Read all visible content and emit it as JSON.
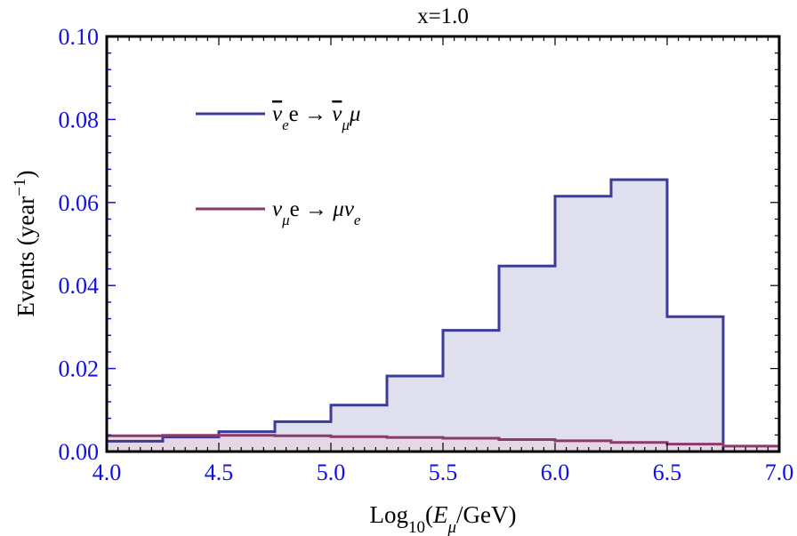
{
  "chart_data": {
    "type": "histogram",
    "title": "x=1.0",
    "xlabel": {
      "base": "Log",
      "sub": "10",
      "open": "(",
      "var": "E",
      "var_sub": "μ",
      "close": "/GeV)"
    },
    "ylabel": {
      "base": "Events (year",
      "sup": "−1",
      "close": ")"
    },
    "xlim": [
      4.0,
      7.0
    ],
    "ylim": [
      0.0,
      0.1
    ],
    "x_ticks": [
      "4.0",
      "4.5",
      "5.0",
      "5.5",
      "6.0",
      "6.5",
      "7.0"
    ],
    "y_ticks": [
      "0.00",
      "0.02",
      "0.04",
      "0.06",
      "0.08",
      "0.10"
    ],
    "bin_edges": [
      4.0,
      4.25,
      4.5,
      4.75,
      5.0,
      5.25,
      5.5,
      5.75,
      6.0,
      6.25,
      6.5,
      6.75,
      7.0
    ],
    "series": [
      {
        "legend": {
          "parts": [
            {
              "t": "ν",
              "italic": true,
              "bar": true
            },
            {
              "t": "e",
              "italic": true,
              "sub": true
            },
            {
              "t": "e → "
            },
            {
              "t": "ν",
              "italic": true,
              "bar": true
            },
            {
              "t": "μ",
              "italic": true,
              "sub": true
            },
            {
              "t": "μ",
              "italic": true
            }
          ]
        },
        "values": [
          0.0025,
          0.0035,
          0.0048,
          0.0072,
          0.0112,
          0.0182,
          0.0292,
          0.0447,
          0.0615,
          0.0655,
          0.0325,
          0.0
        ],
        "color": "#3b3b9a",
        "fill": "#d9d9ea"
      },
      {
        "legend": {
          "parts": [
            {
              "t": "ν",
              "italic": true
            },
            {
              "t": "μ",
              "italic": true,
              "sub": true
            },
            {
              "t": "e → "
            },
            {
              "t": "μν",
              "italic": true
            },
            {
              "t": "e",
              "italic": true,
              "sub": true
            }
          ]
        },
        "values": [
          0.0038,
          0.0039,
          0.0039,
          0.0038,
          0.0036,
          0.0034,
          0.0032,
          0.0029,
          0.0026,
          0.0022,
          0.0018,
          0.0013
        ],
        "color": "#8b3a6e",
        "fill": "#e7d6e2"
      }
    ],
    "colors": {
      "tick_label": "#1010e6",
      "frame": "#000000"
    }
  }
}
